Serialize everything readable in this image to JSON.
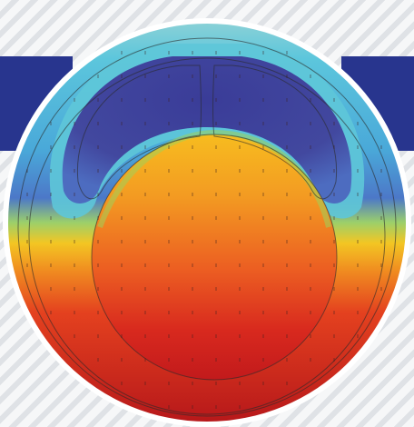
{
  "figure": {
    "description_colors": {
      "background_stripe_light": "#f6f7f8",
      "background_stripe_dark": "#dfe2e6",
      "banner": "#28358e",
      "hot": "#c21a1c",
      "warm": "#f07a22",
      "yellow": "#f6c21e",
      "cool": "#59c4d8",
      "cold": "#3a3f9a"
    }
  }
}
